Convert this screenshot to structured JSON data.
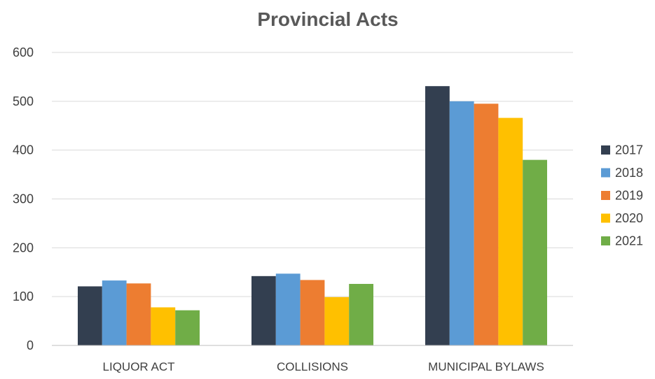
{
  "chart_data": {
    "type": "bar",
    "title": "Provincial Acts",
    "xlabel": "",
    "ylabel": "",
    "categories": [
      "LIQUOR ACT",
      "COLLISIONS",
      "MUNICIPAL BYLAWS"
    ],
    "series": [
      {
        "name": "2017",
        "color": "#333F50",
        "values": [
          121,
          142,
          531
        ]
      },
      {
        "name": "2018",
        "color": "#5B9BD5",
        "values": [
          133,
          147,
          500
        ]
      },
      {
        "name": "2019",
        "color": "#ED7D31",
        "values": [
          127,
          134,
          495
        ]
      },
      {
        "name": "2020",
        "color": "#FFC000",
        "values": [
          78,
          99,
          466
        ]
      },
      {
        "name": "2021",
        "color": "#70AD47",
        "values": [
          72,
          126,
          380
        ]
      }
    ],
    "ylim": [
      0,
      600
    ],
    "yticks": [
      0,
      100,
      200,
      300,
      400,
      500,
      600
    ],
    "grid": true,
    "legend": "right"
  }
}
